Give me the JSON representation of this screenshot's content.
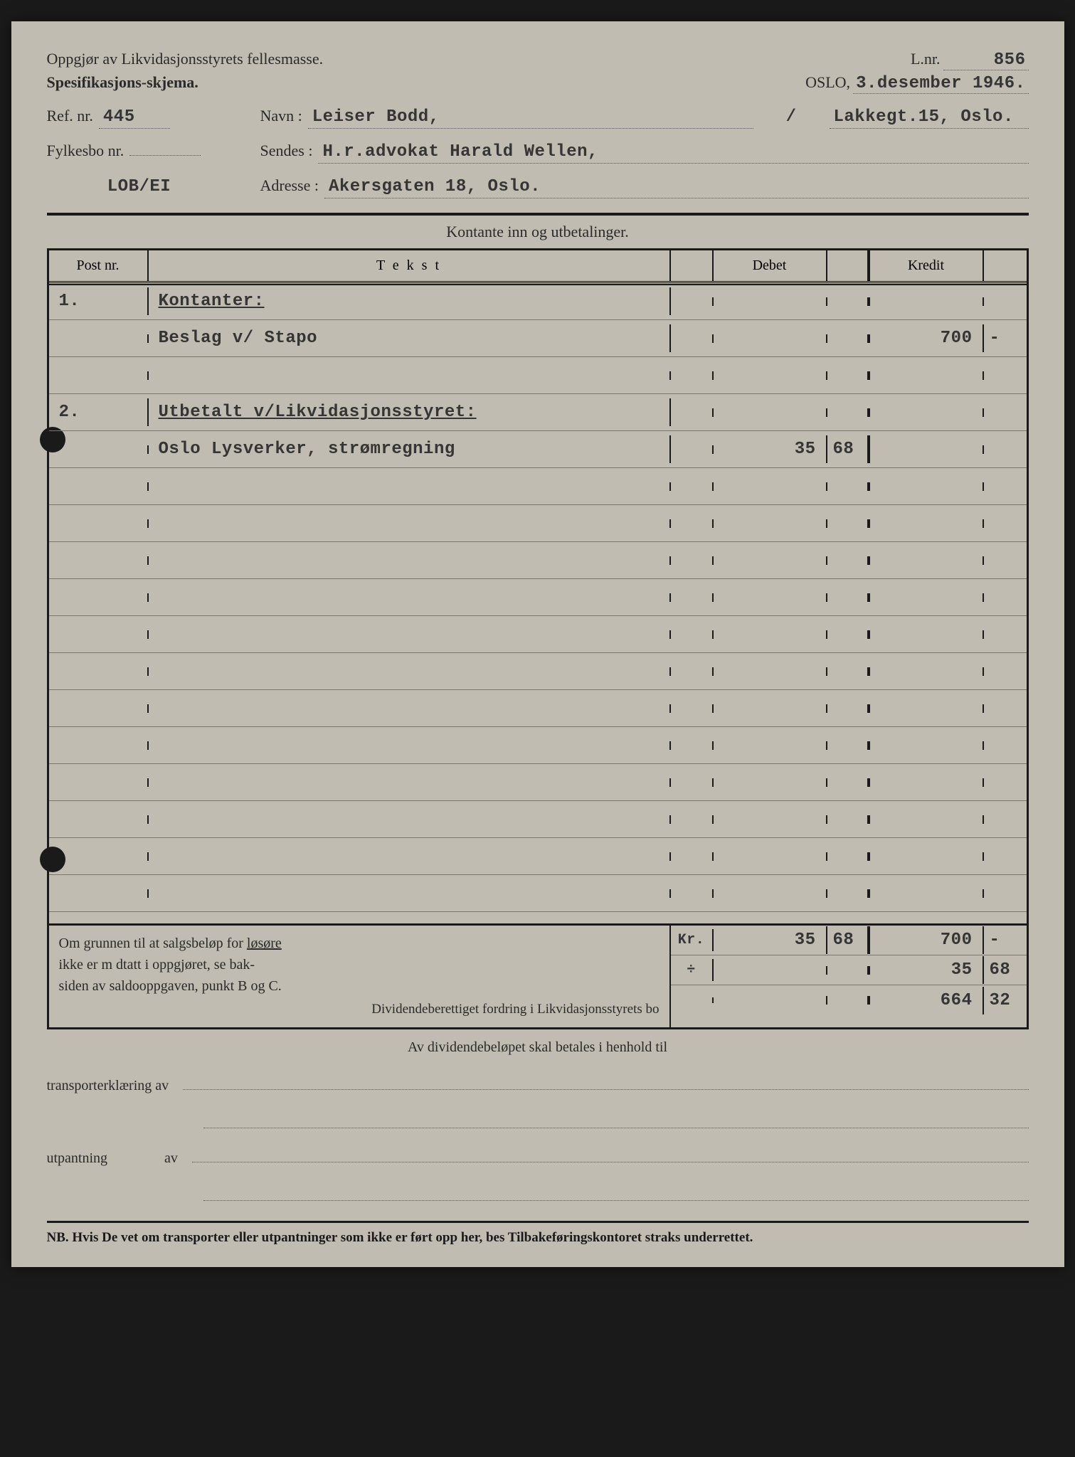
{
  "header": {
    "title1": "Oppgjør av Likvidasjonsstyrets fellesmasse.",
    "title2": "Spesifikasjons-skjema.",
    "lnr_label": "L.nr.",
    "lnr_value": "856",
    "city": "OSLO,",
    "date": "3.desember 1946."
  },
  "fields": {
    "ref_label": "Ref. nr.",
    "ref_value": "445",
    "fylkesbo_label": "Fylkesbo nr.",
    "fylkesbo_value": "",
    "code": "LOB/EI",
    "navn_label": "Navn :",
    "navn_value": "Leiser Bodd,",
    "addr_extra": "Lakkegt.15, Oslo.",
    "sendes_label": "Sendes :",
    "sendes_value": "H.r.advokat Harald Wellen,",
    "adresse_label": "Adresse :",
    "adresse_value": "Akersgaten 18, Oslo."
  },
  "section_title": "Kontante inn og utbetalinger.",
  "columns": {
    "post": "Post nr.",
    "tekst": "T e k s t",
    "debet": "Debet",
    "kredit": "Kredit"
  },
  "rows": [
    {
      "post": "1.",
      "tekst": "Kontanter:",
      "underline": true,
      "debet": "",
      "debet_dec": "",
      "kredit": "",
      "kredit_dec": ""
    },
    {
      "post": "",
      "tekst": "Beslag v/ Stapo",
      "underline": false,
      "debet": "",
      "debet_dec": "",
      "kredit": "700",
      "kredit_dec": "-"
    },
    {
      "post": "",
      "tekst": "",
      "underline": false,
      "debet": "",
      "debet_dec": "",
      "kredit": "",
      "kredit_dec": ""
    },
    {
      "post": "2.",
      "tekst": "Utbetalt v/Likvidasjonsstyret:",
      "underline": true,
      "debet": "",
      "debet_dec": "",
      "kredit": "",
      "kredit_dec": ""
    },
    {
      "post": "",
      "tekst": "Oslo Lysverker, strømregning",
      "underline": false,
      "debet": "35",
      "debet_dec": "68",
      "kredit": "",
      "kredit_dec": ""
    },
    {
      "post": "",
      "tekst": "",
      "underline": false,
      "debet": "",
      "debet_dec": "",
      "kredit": "",
      "kredit_dec": ""
    },
    {
      "post": "",
      "tekst": "",
      "underline": false,
      "debet": "",
      "debet_dec": "",
      "kredit": "",
      "kredit_dec": ""
    },
    {
      "post": "",
      "tekst": "",
      "underline": false,
      "debet": "",
      "debet_dec": "",
      "kredit": "",
      "kredit_dec": ""
    },
    {
      "post": "",
      "tekst": "",
      "underline": false,
      "debet": "",
      "debet_dec": "",
      "kredit": "",
      "kredit_dec": ""
    },
    {
      "post": "",
      "tekst": "",
      "underline": false,
      "debet": "",
      "debet_dec": "",
      "kredit": "",
      "kredit_dec": ""
    },
    {
      "post": "",
      "tekst": "",
      "underline": false,
      "debet": "",
      "debet_dec": "",
      "kredit": "",
      "kredit_dec": ""
    },
    {
      "post": "",
      "tekst": "",
      "underline": false,
      "debet": "",
      "debet_dec": "",
      "kredit": "",
      "kredit_dec": ""
    },
    {
      "post": "",
      "tekst": "",
      "underline": false,
      "debet": "",
      "debet_dec": "",
      "kredit": "",
      "kredit_dec": ""
    },
    {
      "post": "",
      "tekst": "",
      "underline": false,
      "debet": "",
      "debet_dec": "",
      "kredit": "",
      "kredit_dec": ""
    },
    {
      "post": "",
      "tekst": "",
      "underline": false,
      "debet": "",
      "debet_dec": "",
      "kredit": "",
      "kredit_dec": ""
    },
    {
      "post": "",
      "tekst": "",
      "underline": false,
      "debet": "",
      "debet_dec": "",
      "kredit": "",
      "kredit_dec": ""
    },
    {
      "post": "",
      "tekst": "",
      "underline": false,
      "debet": "",
      "debet_dec": "",
      "kredit": "",
      "kredit_dec": ""
    }
  ],
  "footer": {
    "note_l1": "Om grunnen til at salgsbeløp for",
    "note_u": "løsøre",
    "note_l2": "ikke er m dtatt i oppgjøret, se bak-",
    "note_l3": "siden av saldooppgaven, punkt B og C.",
    "dividend": "Dividendeberettiget fordring i Likvidasjonsstyrets bo",
    "sym_kr": "Kr.",
    "sym_plus": "÷",
    "sums": [
      {
        "debet": "35",
        "debet_dec": "68",
        "kredit": "700",
        "kredit_dec": "-"
      },
      {
        "debet": "",
        "debet_dec": "",
        "kredit": "35",
        "kredit_dec": "68"
      },
      {
        "debet": "",
        "debet_dec": "",
        "kredit": "664",
        "kredit_dec": "32"
      }
    ]
  },
  "below": {
    "line": "Av dividendebeløpet skal betales i henhold til",
    "transport": "transporterklæring av",
    "utpantning": "utpantning",
    "av": "av"
  },
  "nb": "NB. Hvis De vet om transporter eller utpantninger som ikke er ført opp her, bes Tilbakeføringskontoret straks underrettet.",
  "colors": {
    "paper": "#c0bcb2",
    "ink": "#1a1a1a",
    "typed": "#353535",
    "rule": "#7a7670"
  }
}
